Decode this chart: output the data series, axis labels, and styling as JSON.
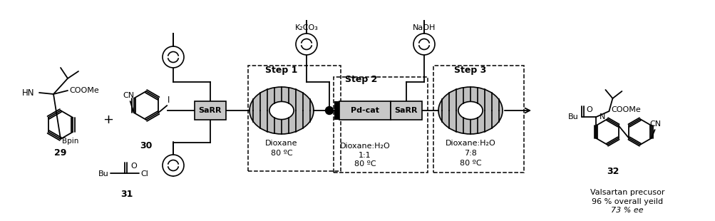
{
  "bg_color": "#ffffff",
  "step1_label": "Step 1",
  "step2_label": "Step 2",
  "step3_label": "Step 3",
  "step1_line1": "Dioxane",
  "step1_line2": "80 ºC",
  "step2_line1": "Dioxane:H₂O",
  "step2_line2": "1:1",
  "step2_line3": "80 ºC",
  "step2_catalyst": "Pd-cat",
  "step3_line1": "Dioxane:H₂O",
  "step3_line2": "7:8",
  "step3_line3": "80 ºC",
  "reagent_top1": "K₂CO₃",
  "reagent_top2": "NaOH",
  "sarr_label": "SaRR",
  "compound29": "29",
  "compound30": "30",
  "compound31": "31",
  "compound32": "32",
  "bpin": "Bpin",
  "hn": "HN",
  "cooMe": "COOMe",
  "cn": "CN",
  "i_label": "I",
  "bu": "Bu",
  "cl": "Cl",
  "o_label": "O",
  "n_label": "N",
  "product_name": "Valsartan precusor",
  "product_yield": "96 % overall yeild",
  "product_ee": "73 % ee",
  "plus": "+"
}
